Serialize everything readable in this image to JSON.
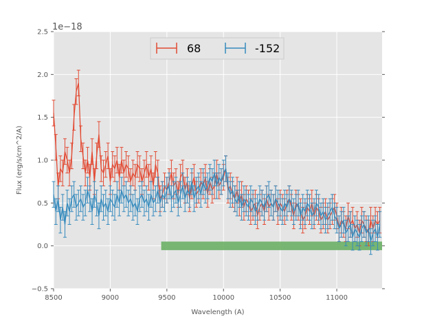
{
  "chart_data": {
    "type": "line",
    "title": "",
    "xlabel": "Wavelength (A)",
    "ylabel": "Flux (erg/s/cm^2/A)",
    "y_offset_label": "1e−18",
    "xlim": [
      8500,
      11400
    ],
    "ylim": [
      -0.5,
      2.5
    ],
    "xticks": [
      8500,
      9000,
      9500,
      10000,
      10500,
      11000
    ],
    "xtick_labels": [
      "8500",
      "9000",
      "9500",
      "10000",
      "10500",
      "11000"
    ],
    "yticks": [
      -0.5,
      0.0,
      0.5,
      1.0,
      1.5,
      2.0,
      2.5
    ],
    "ytick_labels": [
      "−0.5",
      "0.0",
      "0.5",
      "1.0",
      "1.5",
      "2.0",
      "2.5"
    ],
    "grid": true,
    "legend_position": "top-center",
    "series": [
      {
        "name": "68",
        "color": "#e24a33",
        "x": [
          8500,
          8520,
          8540,
          8560,
          8580,
          8600,
          8620,
          8640,
          8660,
          8680,
          8700,
          8720,
          8740,
          8760,
          8780,
          8800,
          8820,
          8840,
          8860,
          8880,
          8900,
          8920,
          8940,
          8960,
          8980,
          9000,
          9020,
          9040,
          9060,
          9080,
          9100,
          9120,
          9140,
          9160,
          9180,
          9200,
          9220,
          9240,
          9260,
          9280,
          9300,
          9320,
          9340,
          9360,
          9380,
          9400,
          9420,
          9440,
          9460,
          9480,
          9500,
          9520,
          9540,
          9560,
          9580,
          9600,
          9620,
          9640,
          9660,
          9680,
          9700,
          9720,
          9740,
          9760,
          9780,
          9800,
          9820,
          9840,
          9860,
          9880,
          9900,
          9920,
          9940,
          9960,
          9980,
          10000,
          10020,
          10040,
          10060,
          10080,
          10100,
          10120,
          10140,
          10160,
          10180,
          10200,
          10220,
          10240,
          10260,
          10280,
          10300,
          10320,
          10340,
          10360,
          10380,
          10400,
          10420,
          10440,
          10460,
          10480,
          10500,
          10520,
          10540,
          10560,
          10580,
          10600,
          10620,
          10640,
          10660,
          10680,
          10700,
          10720,
          10740,
          10760,
          10780,
          10800,
          10820,
          10840,
          10860,
          10880,
          10900,
          10920,
          10940,
          10960,
          10980,
          11000,
          11020,
          11040,
          11060,
          11080,
          11100,
          11120,
          11140,
          11160,
          11180,
          11200,
          11220,
          11240,
          11260,
          11280,
          11300,
          11320,
          11340,
          11360,
          11380
        ],
        "y": [
          1.55,
          1.15,
          0.7,
          0.9,
          0.85,
          1.1,
          1.0,
          0.85,
          1.05,
          1.5,
          1.8,
          1.9,
          1.25,
          1.05,
          0.85,
          1.0,
          0.8,
          1.1,
          0.75,
          1.05,
          1.3,
          0.9,
          0.85,
          0.95,
          1.05,
          0.75,
          0.95,
          0.9,
          1.0,
          0.8,
          1.0,
          0.85,
          0.95,
          0.9,
          0.75,
          0.85,
          0.8,
          0.95,
          0.9,
          0.75,
          0.85,
          0.95,
          0.8,
          0.9,
          0.7,
          0.95,
          0.85,
          0.55,
          0.6,
          0.7,
          0.65,
          0.75,
          0.85,
          0.7,
          0.75,
          0.6,
          0.8,
          0.85,
          0.65,
          0.75,
          0.55,
          0.7,
          0.8,
          0.6,
          0.65,
          0.75,
          0.7,
          0.8,
          0.6,
          0.75,
          0.65,
          0.7,
          0.85,
          0.7,
          0.75,
          0.8,
          0.9,
          0.65,
          0.7,
          0.6,
          0.55,
          0.65,
          0.5,
          0.6,
          0.45,
          0.55,
          0.5,
          0.4,
          0.45,
          0.5,
          0.35,
          0.45,
          0.5,
          0.4,
          0.55,
          0.45,
          0.5,
          0.45,
          0.55,
          0.4,
          0.5,
          0.45,
          0.4,
          0.5,
          0.55,
          0.45,
          0.35,
          0.5,
          0.45,
          0.4,
          0.3,
          0.35,
          0.45,
          0.4,
          0.5,
          0.35,
          0.45,
          0.4,
          0.3,
          0.35,
          0.4,
          0.3,
          0.35,
          0.4,
          0.45,
          0.35,
          0.2,
          0.3,
          0.25,
          0.2,
          0.35,
          0.25,
          0.3,
          0.2,
          0.25,
          0.15,
          0.3,
          0.25,
          0.2,
          0.15,
          0.3,
          0.2,
          0.3,
          0.25,
          0.3
        ],
        "err": 0.15
      },
      {
        "name": "-152",
        "color": "#348abd",
        "x": [
          8500,
          8520,
          8540,
          8560,
          8580,
          8600,
          8620,
          8640,
          8660,
          8680,
          8700,
          8720,
          8740,
          8760,
          8780,
          8800,
          8820,
          8840,
          8860,
          8880,
          8900,
          8920,
          8940,
          8960,
          8980,
          9000,
          9020,
          9040,
          9060,
          9080,
          9100,
          9120,
          9140,
          9160,
          9180,
          9200,
          9220,
          9240,
          9260,
          9280,
          9300,
          9320,
          9340,
          9360,
          9380,
          9400,
          9420,
          9440,
          9460,
          9480,
          9500,
          9520,
          9540,
          9560,
          9580,
          9600,
          9620,
          9640,
          9660,
          9680,
          9700,
          9720,
          9740,
          9760,
          9780,
          9800,
          9820,
          9840,
          9860,
          9880,
          9900,
          9920,
          9940,
          9960,
          9980,
          10000,
          10020,
          10040,
          10060,
          10080,
          10100,
          10120,
          10140,
          10160,
          10180,
          10200,
          10220,
          10240,
          10260,
          10280,
          10300,
          10320,
          10340,
          10360,
          10380,
          10400,
          10420,
          10440,
          10460,
          10480,
          10500,
          10520,
          10540,
          10560,
          10580,
          10600,
          10620,
          10640,
          10660,
          10680,
          10700,
          10720,
          10740,
          10760,
          10780,
          10800,
          10820,
          10840,
          10860,
          10880,
          10900,
          10920,
          10940,
          10960,
          10980,
          11000,
          11020,
          11040,
          11060,
          11080,
          11100,
          11120,
          11140,
          11160,
          11180,
          11200,
          11220,
          11240,
          11260,
          11280,
          11300,
          11320,
          11340,
          11360,
          11380
        ],
        "y": [
          0.6,
          0.4,
          0.55,
          0.3,
          0.45,
          0.25,
          0.5,
          0.4,
          0.55,
          0.6,
          0.45,
          0.5,
          0.55,
          0.45,
          0.5,
          0.65,
          0.55,
          0.4,
          0.6,
          0.5,
          0.35,
          0.55,
          0.45,
          0.5,
          0.4,
          0.55,
          0.5,
          0.45,
          0.6,
          0.5,
          0.65,
          0.55,
          0.6,
          0.5,
          0.55,
          0.45,
          0.5,
          0.4,
          0.55,
          0.6,
          0.5,
          0.55,
          0.45,
          0.6,
          0.5,
          0.55,
          0.65,
          0.5,
          0.6,
          0.55,
          0.65,
          0.7,
          0.55,
          0.6,
          0.65,
          0.5,
          0.6,
          0.7,
          0.55,
          0.65,
          0.6,
          0.75,
          0.55,
          0.65,
          0.7,
          0.6,
          0.75,
          0.65,
          0.7,
          0.8,
          0.75,
          0.85,
          0.7,
          0.8,
          0.75,
          0.85,
          0.9,
          0.7,
          0.6,
          0.65,
          0.55,
          0.5,
          0.6,
          0.45,
          0.55,
          0.5,
          0.45,
          0.55,
          0.5,
          0.4,
          0.45,
          0.55,
          0.5,
          0.45,
          0.55,
          0.6,
          0.5,
          0.45,
          0.55,
          0.5,
          0.45,
          0.4,
          0.5,
          0.45,
          0.55,
          0.5,
          0.4,
          0.45,
          0.5,
          0.35,
          0.45,
          0.4,
          0.5,
          0.45,
          0.35,
          0.4,
          0.5,
          0.45,
          0.35,
          0.4,
          0.3,
          0.35,
          0.4,
          0.45,
          0.35,
          0.3,
          0.2,
          0.25,
          0.3,
          0.15,
          0.2,
          0.25,
          0.1,
          0.2,
          0.15,
          0.1,
          0.2,
          0.25,
          0.15,
          0.2,
          0.05,
          0.15,
          0.2,
          0.1,
          0.25
        ],
        "err": 0.15
      }
    ],
    "bands": [
      {
        "name": "green-band",
        "x_start": 9450,
        "x_end": 11400,
        "y_low": -0.05,
        "y_high": 0.05,
        "color": "#6ab065"
      }
    ]
  }
}
